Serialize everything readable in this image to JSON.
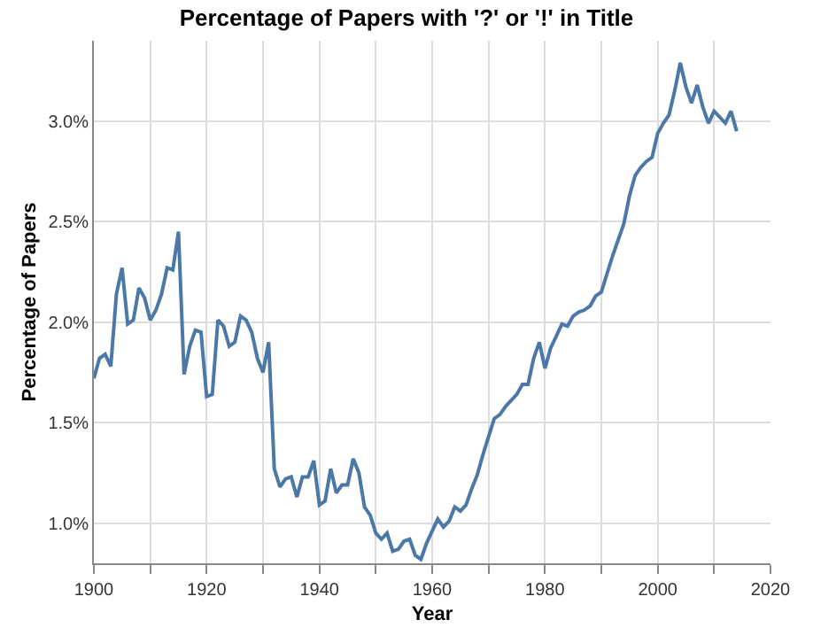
{
  "chart_data": {
    "type": "line",
    "title": "Percentage of Papers with '?' or '!' in Title",
    "xlabel": "Year",
    "ylabel": "Percentage of Papers",
    "x": [
      1900,
      1901,
      1902,
      1903,
      1904,
      1905,
      1906,
      1907,
      1908,
      1909,
      1910,
      1911,
      1912,
      1913,
      1914,
      1915,
      1916,
      1917,
      1918,
      1919,
      1920,
      1921,
      1922,
      1923,
      1924,
      1925,
      1926,
      1927,
      1928,
      1929,
      1930,
      1931,
      1932,
      1933,
      1934,
      1935,
      1936,
      1937,
      1938,
      1939,
      1940,
      1941,
      1942,
      1943,
      1944,
      1945,
      1946,
      1947,
      1948,
      1949,
      1950,
      1951,
      1952,
      1953,
      1954,
      1955,
      1956,
      1957,
      1958,
      1959,
      1960,
      1961,
      1962,
      1963,
      1964,
      1965,
      1966,
      1967,
      1968,
      1969,
      1970,
      1971,
      1972,
      1973,
      1974,
      1975,
      1976,
      1977,
      1978,
      1979,
      1980,
      1981,
      1982,
      1983,
      1984,
      1985,
      1986,
      1987,
      1988,
      1989,
      1990,
      1991,
      1992,
      1993,
      1994,
      1995,
      1996,
      1997,
      1998,
      1999,
      2000,
      2001,
      2002,
      2003,
      2004,
      2005,
      2006,
      2007,
      2008,
      2009,
      2010,
      2011,
      2012,
      2013,
      2014
    ],
    "series": [
      {
        "color": "#4c78a8",
        "values": [
          1.72,
          1.82,
          1.84,
          1.78,
          2.14,
          2.27,
          1.99,
          2.01,
          2.17,
          2.12,
          2.01,
          2.06,
          2.14,
          2.27,
          2.26,
          2.45,
          1.74,
          1.88,
          1.96,
          1.95,
          1.63,
          1.64,
          2.01,
          1.98,
          1.88,
          1.9,
          2.03,
          2.01,
          1.95,
          1.82,
          1.75,
          1.9,
          1.27,
          1.18,
          1.22,
          1.23,
          1.13,
          1.23,
          1.23,
          1.31,
          1.09,
          1.11,
          1.27,
          1.15,
          1.19,
          1.19,
          1.32,
          1.25,
          1.08,
          1.04,
          0.95,
          0.92,
          0.95,
          0.86,
          0.87,
          0.91,
          0.92,
          0.84,
          0.82,
          0.9,
          0.96,
          1.02,
          0.98,
          1.01,
          1.08,
          1.06,
          1.09,
          1.17,
          1.24,
          1.34,
          1.43,
          1.52,
          1.54,
          1.58,
          1.61,
          1.64,
          1.69,
          1.69,
          1.82,
          1.9,
          1.77,
          1.87,
          1.93,
          1.99,
          1.98,
          2.03,
          2.05,
          2.06,
          2.08,
          2.13,
          2.15,
          2.24,
          2.33,
          2.41,
          2.49,
          2.63,
          2.73,
          2.77,
          2.8,
          2.82,
          2.94,
          2.99,
          3.03,
          3.15,
          3.29,
          3.17,
          3.09,
          3.18,
          3.07,
          2.99,
          3.05,
          3.02,
          2.99,
          3.05,
          2.95
        ]
      }
    ],
    "xlim": [
      1900,
      2020
    ],
    "xticks": [
      1900,
      {
        "value": 1910,
        "label": null
      },
      1920,
      {
        "value": 1930,
        "label": null
      },
      1940,
      {
        "value": 1950,
        "label": null
      },
      1960,
      {
        "value": 1970,
        "label": null
      },
      1980,
      {
        "value": 1990,
        "label": null
      },
      2000,
      {
        "value": 2010,
        "label": null
      },
      2020
    ],
    "ylim": [
      0.8,
      3.4
    ],
    "yticks": [
      {
        "value": 1.0,
        "label": "1.0%"
      },
      {
        "value": 1.5,
        "label": "1.5%"
      },
      {
        "value": 2.0,
        "label": "2.0%"
      },
      {
        "value": 2.5,
        "label": "2.5%"
      },
      {
        "value": 3.0,
        "label": "3.0%"
      }
    ],
    "grid": true,
    "marker": "none",
    "line_style": "solid"
  }
}
